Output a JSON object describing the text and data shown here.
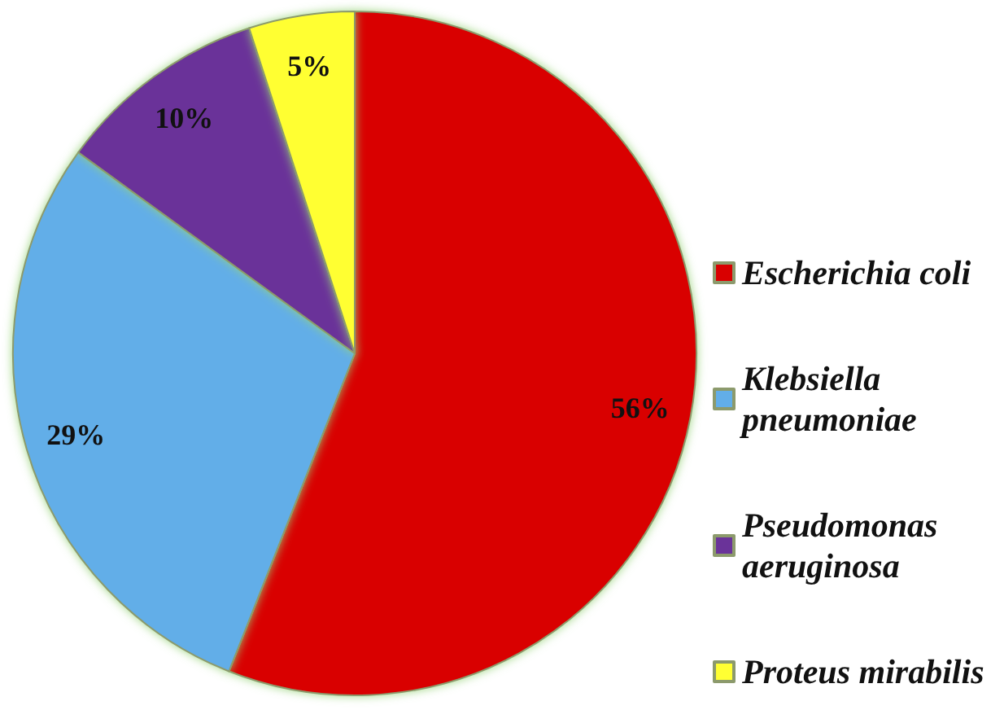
{
  "chart_data": {
    "type": "pie",
    "categories": [
      "Escherichia coli",
      "Klebsiella pneumoniae",
      "Pseudomonas aeruginosa",
      "Proteus mirabilis"
    ],
    "values": [
      56,
      29,
      10,
      5
    ],
    "colors": [
      "#d90000",
      "#62aee8",
      "#6a3399",
      "#ffff33"
    ],
    "value_labels": [
      "56%",
      "29%",
      "10%",
      "5%"
    ],
    "legend": "right"
  }
}
